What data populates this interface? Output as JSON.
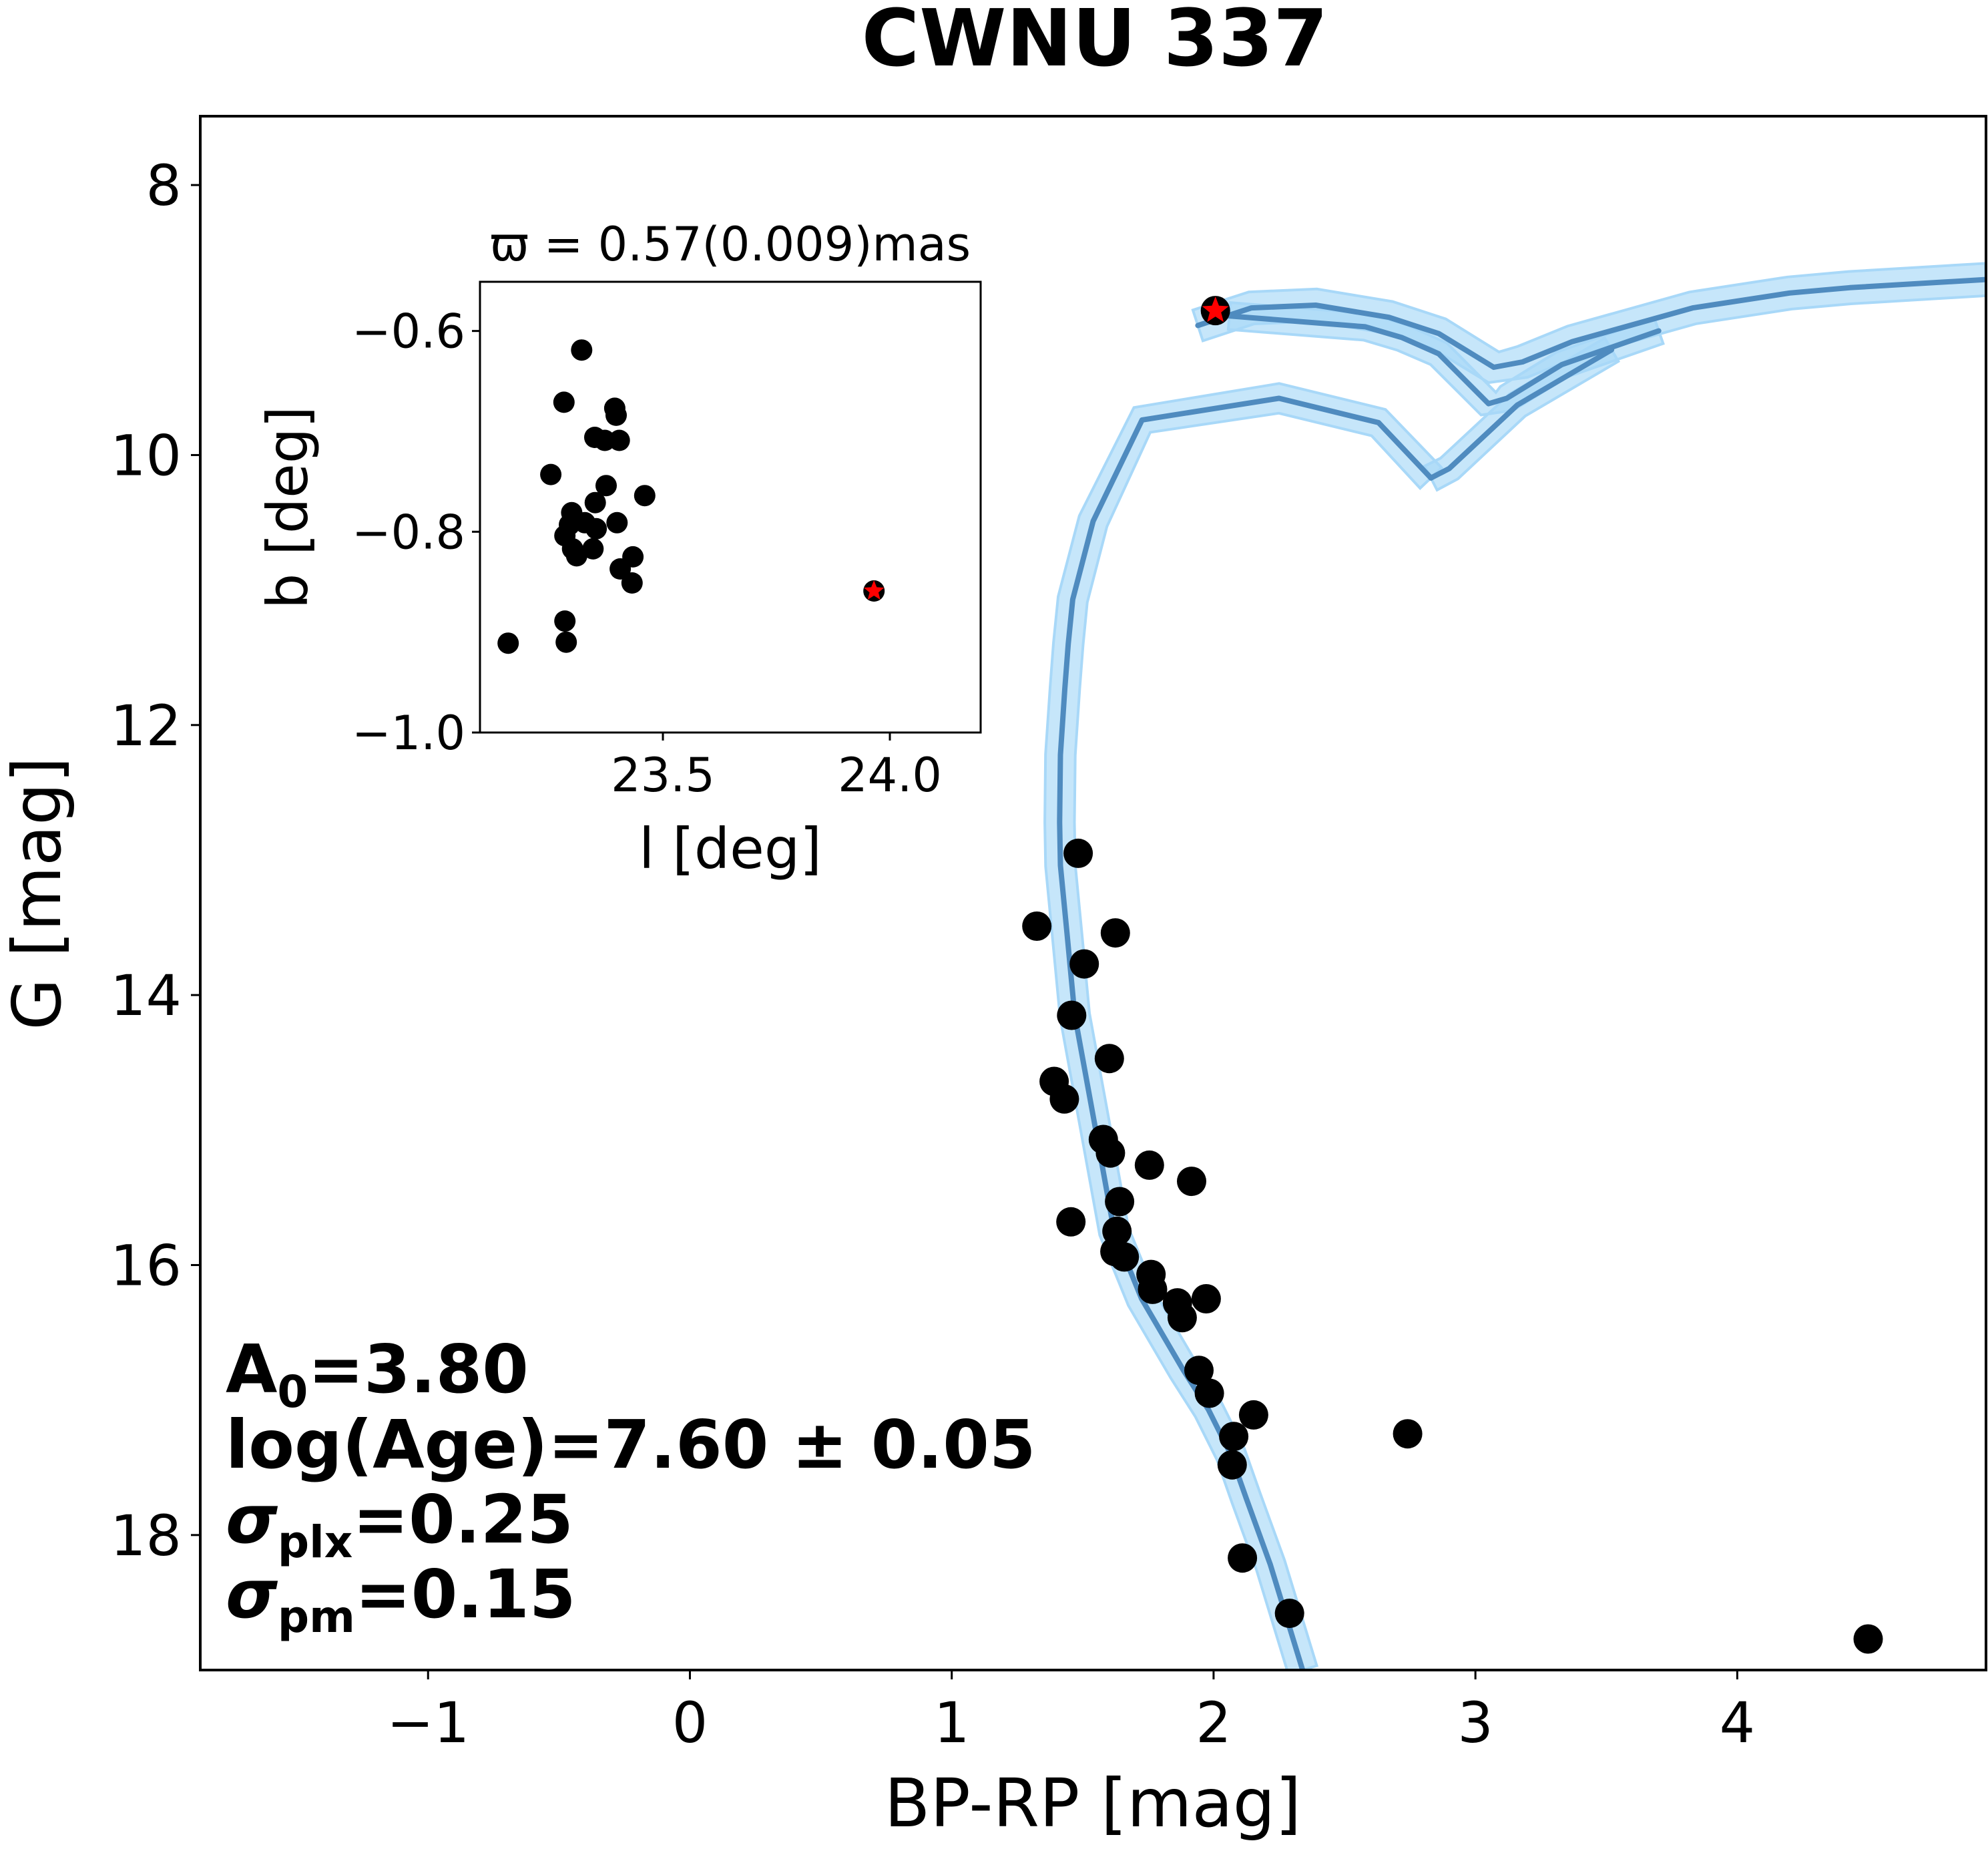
{
  "chart_data": [
    {
      "type": "scatter",
      "role": "main",
      "title": "CWNU 337",
      "xlabel": "BP-RP [mag]",
      "ylabel": "G [mag]",
      "xlim": [
        -1.87,
        4.95
      ],
      "ylim": [
        19.0,
        7.49
      ],
      "y_inverted": true,
      "grid": false,
      "xticks": [
        -1,
        0,
        1,
        2,
        3,
        4
      ],
      "xtick_labels": [
        "−1",
        "0",
        "1",
        "2",
        "3",
        "4"
      ],
      "yticks": [
        8,
        10,
        12,
        14,
        16,
        18
      ],
      "ytick_labels": [
        "8",
        "10",
        "12",
        "14",
        "16",
        "18"
      ],
      "members": {
        "name": "cluster members",
        "color": "#000000",
        "x": [
          1.483,
          1.325,
          1.625,
          1.506,
          1.458,
          1.602,
          1.391,
          1.43,
          1.579,
          1.606,
          1.755,
          1.916,
          1.641,
          1.455,
          1.631,
          1.623,
          1.659,
          1.761,
          1.767,
          1.862,
          1.972,
          1.88,
          1.944,
          1.984,
          2.153,
          2.077,
          2.071,
          2.11,
          2.29,
          2.741,
          4.5
        ],
        "y": [
          12.95,
          13.49,
          13.54,
          13.77,
          14.15,
          14.47,
          14.64,
          14.77,
          15.07,
          15.17,
          15.26,
          15.38,
          15.53,
          15.68,
          15.75,
          15.9,
          15.94,
          16.07,
          16.18,
          16.28,
          16.25,
          16.39,
          16.78,
          16.95,
          17.11,
          17.27,
          17.48,
          18.17,
          18.58,
          17.25,
          18.77
        ]
      },
      "highlight": {
        "name": "highlighted star",
        "marker": "red star on black circle",
        "color": "#ff0000",
        "x": 2.007,
        "y": 8.93
      },
      "isochrones": {
        "line_color": "#4f8bbf",
        "band_color": "#a8d8f8",
        "curves": [
          {
            "name": "best-fit isochrone",
            "x": [
              2.34,
              2.217,
              2.125,
              2.065,
              1.98,
              1.885,
              1.725,
              1.62,
              1.55,
              1.47,
              1.44,
              1.415,
              1.412,
              1.415,
              1.432,
              1.445,
              1.462,
              1.54,
              1.727,
              2.25,
              2.63,
              2.83
            ],
            "y": [
              19.0,
              18.22,
              17.73,
              17.4,
              17.07,
              16.78,
              16.25,
              15.75,
              15.0,
              14.15,
              13.54,
              13.04,
              12.72,
              12.22,
              11.73,
              11.4,
              11.07,
              10.49,
              9.74,
              9.58,
              9.76,
              10.17
            ],
            "band": 0.11
          },
          {
            "name": "lower loop continuation",
            "x": [
              2.83,
              2.9,
              3.16,
              3.52
            ],
            "y": [
              10.17,
              10.1,
              9.63,
              9.22
            ],
            "band": 0.1
          },
          {
            "name": "upper branch",
            "x": [
              1.94,
              2.145,
              2.39,
              2.67,
              2.86,
              3.07,
              3.18,
              3.37,
              3.83,
              4.2,
              4.43,
              4.95
            ],
            "y": [
              9.04,
              8.91,
              8.89,
              8.98,
              9.1,
              9.35,
              9.31,
              9.16,
              8.91,
              8.8,
              8.76,
              8.7
            ],
            "band": 0.12
          },
          {
            "name": "middle branch",
            "x": [
              2.06,
              2.58,
              2.72,
              2.86,
              3.05,
              3.12,
              3.33,
              3.7
            ],
            "y": [
              8.97,
              9.05,
              9.13,
              9.25,
              9.62,
              9.58,
              9.33,
              9.08
            ],
            "band": 0.1
          }
        ]
      },
      "annotations": [
        {
          "main": "A",
          "sub": "0",
          "rest": "=3.80"
        },
        {
          "main": "log(Age)=7.60 ± 0.05",
          "sub": "",
          "rest": ""
        },
        {
          "main": "σ",
          "sub": "plx",
          "rest": "=0.25"
        },
        {
          "main": "σ",
          "sub": "pm",
          "rest": "=0.15"
        }
      ],
      "annotation_placement": "bottom-left"
    },
    {
      "type": "scatter",
      "role": "inset",
      "title": "ϖ = 0.57(0.009)mas",
      "xlabel": "l [deg]",
      "ylabel": "b [deg]",
      "xlim": [
        23.097,
        24.2
      ],
      "ylim": [
        -1.0,
        -0.551
      ],
      "grid": false,
      "xticks": [
        23.5,
        24.0
      ],
      "xtick_labels": [
        "23.5",
        "24.0"
      ],
      "yticks": [
        -0.6,
        -0.8,
        -1.0
      ],
      "ytick_labels": [
        "−0.6",
        "−0.8",
        "−1.0"
      ],
      "members": {
        "color": "#000000",
        "x": [
          23.321,
          23.282,
          23.394,
          23.397,
          23.35,
          23.372,
          23.404,
          23.253,
          23.375,
          23.46,
          23.351,
          23.299,
          23.399,
          23.328,
          23.294,
          23.353,
          23.284,
          23.301,
          23.346,
          23.31,
          23.434,
          23.406,
          23.432,
          23.284,
          23.287,
          23.159
        ],
        "y": [
          -0.619,
          -0.671,
          -0.677,
          -0.684,
          -0.706,
          -0.709,
          -0.709,
          -0.743,
          -0.754,
          -0.764,
          -0.771,
          -0.781,
          -0.791,
          -0.791,
          -0.793,
          -0.797,
          -0.804,
          -0.817,
          -0.817,
          -0.824,
          -0.825,
          -0.837,
          -0.851,
          -0.889,
          -0.91,
          -0.911
        ]
      },
      "highlight": {
        "marker": "red star on black circle",
        "color": "#ff0000",
        "x": 23.965,
        "y": -0.859
      },
      "placement": "upper-left"
    }
  ]
}
